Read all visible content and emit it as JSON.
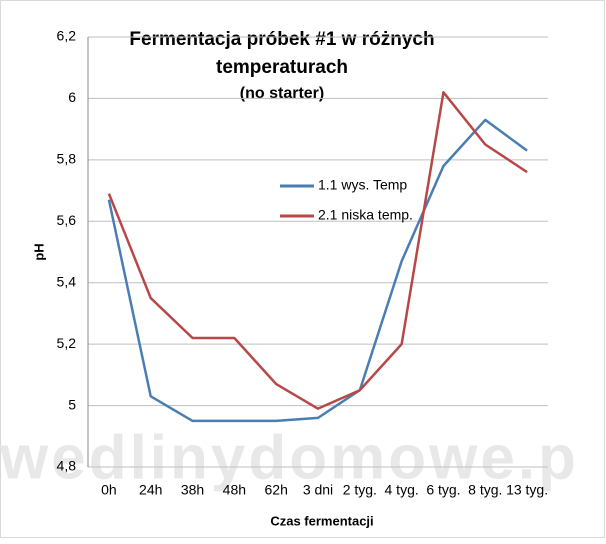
{
  "chart_data": {
    "type": "line",
    "title": "Fermentacja próbek #1 w różnych",
    "title_line2": "temperaturach",
    "subtitle": "(no starter)",
    "x_label": "Czas fermentacji",
    "y_label": "pH",
    "watermark": "wedlinydomowe.p",
    "categories": [
      "0h",
      "24h",
      "38h",
      "48h",
      "62h",
      "3 dni",
      "2 tyg.",
      "4 tyg.",
      "6 tyg.",
      "8 tyg.",
      "13 tyg."
    ],
    "series": [
      {
        "name": "1.1 wys. Temp",
        "color": "#4a7eb3",
        "values": [
          5.67,
          5.03,
          4.95,
          4.95,
          4.95,
          4.96,
          5.05,
          5.47,
          5.78,
          5.93,
          5.83
        ]
      },
      {
        "name": "2.1 niska temp.",
        "color": "#b84848",
        "values": [
          5.69,
          5.35,
          5.22,
          5.22,
          5.07,
          4.99,
          5.05,
          5.2,
          6.02,
          5.85,
          5.76
        ]
      }
    ],
    "ylim": [
      4.8,
      6.2
    ],
    "yticks": [
      {
        "value": 4.8,
        "label": "4,8"
      },
      {
        "value": 5,
        "label": "5"
      },
      {
        "value": 5.2,
        "label": "5,2"
      },
      {
        "value": 5.4,
        "label": "5,4"
      },
      {
        "value": 5.6,
        "label": "5,6"
      },
      {
        "value": 5.8,
        "label": "5,8"
      },
      {
        "value": 6,
        "label": "6"
      },
      {
        "value": 6.2,
        "label": "6,2"
      }
    ],
    "grid": true
  }
}
